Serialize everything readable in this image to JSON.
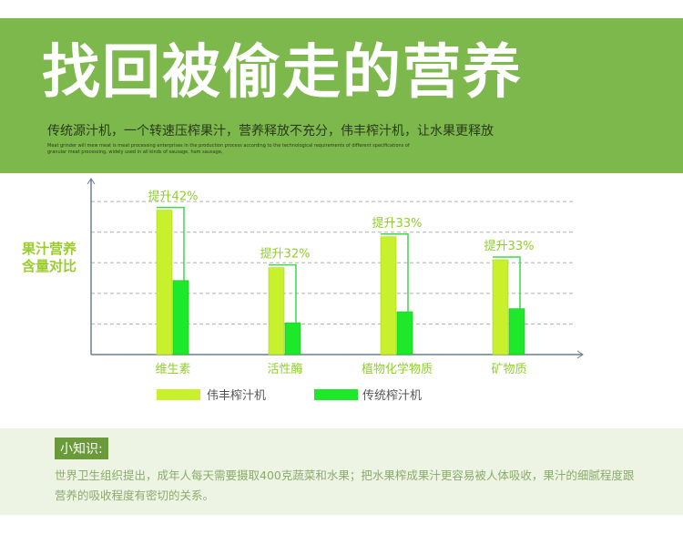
{
  "header": {
    "title": "找回被偷走的营养",
    "subtitle": "传统源汁机，一个转速压榨果汁，营养释放不充分，伟丰榨汁机，让水果更释放",
    "english": "Meat grinder will mew meat is meat processing enterprises in the production process according to the technological requirements of different specifications of granular meat processing, widely used in all kinds of sausage, ham sausage,"
  },
  "chart_data": {
    "type": "bar",
    "ylabel": "果汁营养含量对比",
    "categories": [
      "维生素",
      "活性酶",
      "植物化学物质",
      "矿物质"
    ],
    "series": [
      {
        "name": "伟丰榨汁机",
        "color": "#c8f02c",
        "values": [
          4.72,
          2.84,
          3.85,
          3.1
        ]
      },
      {
        "name": "传统榨汁机",
        "color": "#1ee82a",
        "values": [
          2.42,
          1.04,
          1.4,
          1.5
        ]
      }
    ],
    "annotations": [
      "提升42%",
      "提升32%",
      "提升33%",
      "提升33%"
    ],
    "ylim": [
      0,
      5.75
    ],
    "yticks": [
      1,
      2,
      3,
      4,
      5
    ],
    "grid": true
  },
  "tip": {
    "label": "小知识:",
    "text": "世界卫生组织提出，成年人每天需要摄取400克蔬菜和水果；把水果榨成果汁更容易被人体吸收，果汁的细腻程度跟营养的吸收程度有密切的关系。"
  }
}
